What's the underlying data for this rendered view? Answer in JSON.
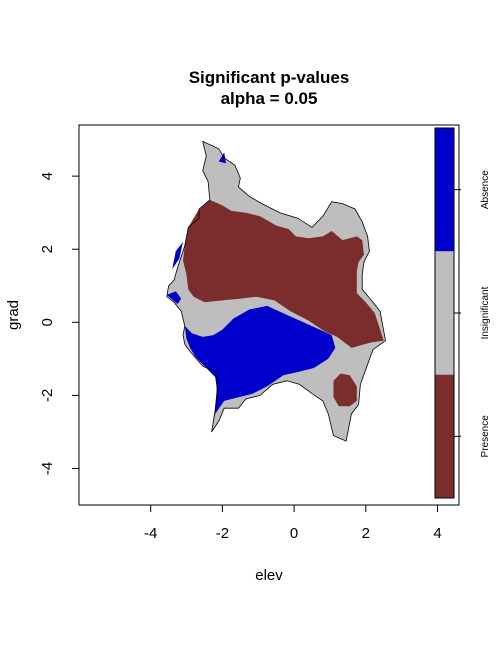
{
  "chart_data": {
    "type": "heatmap",
    "title": "Significant p-values",
    "subtitle": "alpha = 0.05",
    "xlabel": "elev",
    "ylabel": "grad",
    "xlim": [
      -6,
      4.6
    ],
    "ylim": [
      -5,
      5.4
    ],
    "xticks": [
      -4,
      -2,
      0,
      2,
      4
    ],
    "yticks": [
      -4,
      -2,
      0,
      2,
      4
    ],
    "legend": {
      "placement": "right",
      "categories": [
        {
          "label": "Absence",
          "color": "#0000cd"
        },
        {
          "label": "Insignificant",
          "color": "#bebebe"
        },
        {
          "label": "Presence",
          "color": "#7b2c2c"
        }
      ]
    },
    "regions": {
      "insignificant": {
        "color": "#bebebe",
        "outline": [
          [
            -2.55,
            4.95
          ],
          [
            -2.1,
            4.75
          ],
          [
            -1.95,
            4.5
          ],
          [
            -1.65,
            4.3
          ],
          [
            -1.5,
            3.95
          ],
          [
            -1.55,
            3.7
          ],
          [
            -1.25,
            3.45
          ],
          [
            -0.9,
            3.25
          ],
          [
            -0.4,
            3.0
          ],
          [
            0.1,
            2.85
          ],
          [
            0.5,
            2.6
          ],
          [
            0.8,
            2.9
          ],
          [
            1.05,
            3.3
          ],
          [
            1.35,
            3.25
          ],
          [
            1.7,
            3.1
          ],
          [
            1.9,
            2.75
          ],
          [
            2.05,
            2.35
          ],
          [
            2.1,
            1.95
          ],
          [
            1.95,
            1.65
          ],
          [
            1.9,
            1.3
          ],
          [
            1.9,
            0.9
          ],
          [
            2.2,
            0.55
          ],
          [
            2.4,
            0.3
          ],
          [
            2.55,
            -0.5
          ],
          [
            2.2,
            -0.75
          ],
          [
            2.05,
            -1.15
          ],
          [
            1.85,
            -1.7
          ],
          [
            1.8,
            -2.25
          ],
          [
            1.6,
            -2.5
          ],
          [
            1.5,
            -3.0
          ],
          [
            1.45,
            -3.25
          ],
          [
            1.1,
            -3.1
          ],
          [
            0.95,
            -2.5
          ],
          [
            0.8,
            -2.15
          ],
          [
            0.5,
            -1.95
          ],
          [
            0.15,
            -1.7
          ],
          [
            -0.2,
            -1.6
          ],
          [
            -0.6,
            -1.7
          ],
          [
            -0.95,
            -2.0
          ],
          [
            -1.35,
            -2.1
          ],
          [
            -1.55,
            -2.35
          ],
          [
            -1.95,
            -2.35
          ],
          [
            -2.1,
            -2.7
          ],
          [
            -2.3,
            -3.0
          ],
          [
            -2.2,
            -2.4
          ],
          [
            -2.15,
            -1.9
          ],
          [
            -2.15,
            -1.55
          ],
          [
            -2.2,
            -1.35
          ],
          [
            -2.55,
            -1.2
          ],
          [
            -2.9,
            -0.8
          ],
          [
            -3.05,
            -0.6
          ],
          [
            -3.1,
            -0.35
          ],
          [
            -3.05,
            -0.1
          ],
          [
            -3.15,
            0.3
          ],
          [
            -3.35,
            0.55
          ],
          [
            -3.55,
            0.7
          ],
          [
            -3.5,
            1.0
          ],
          [
            -3.35,
            1.15
          ],
          [
            -3.25,
            1.5
          ],
          [
            -3.05,
            2.1
          ],
          [
            -2.95,
            2.6
          ],
          [
            -2.65,
            2.85
          ],
          [
            -2.65,
            3.1
          ],
          [
            -2.35,
            3.35
          ],
          [
            -2.4,
            3.85
          ],
          [
            -2.55,
            4.15
          ],
          [
            -2.45,
            4.55
          ],
          [
            -2.55,
            4.95
          ]
        ]
      },
      "presence": {
        "color": "#7b2c2c",
        "polygons": [
          [
            [
              -2.95,
              2.6
            ],
            [
              -2.65,
              3.1
            ],
            [
              -2.35,
              3.35
            ],
            [
              -2.0,
              3.2
            ],
            [
              -1.75,
              3.05
            ],
            [
              -1.35,
              3.0
            ],
            [
              -0.95,
              2.9
            ],
            [
              -0.5,
              2.65
            ],
            [
              -0.15,
              2.55
            ],
            [
              0.05,
              2.35
            ],
            [
              0.4,
              2.3
            ],
            [
              0.8,
              2.35
            ],
            [
              1.05,
              2.5
            ],
            [
              1.35,
              2.25
            ],
            [
              1.55,
              2.3
            ],
            [
              1.75,
              2.35
            ],
            [
              1.9,
              2.25
            ],
            [
              1.95,
              1.85
            ],
            [
              1.8,
              1.65
            ],
            [
              1.75,
              1.4
            ],
            [
              1.75,
              1.05
            ],
            [
              1.75,
              0.8
            ],
            [
              2.0,
              0.55
            ],
            [
              2.25,
              0.25
            ],
            [
              2.5,
              -0.5
            ],
            [
              2.15,
              -0.55
            ],
            [
              1.6,
              -0.7
            ],
            [
              1.2,
              -0.4
            ],
            [
              0.85,
              -0.25
            ],
            [
              0.4,
              0.05
            ],
            [
              -0.1,
              0.3
            ],
            [
              -0.55,
              0.6
            ],
            [
              -1.05,
              0.7
            ],
            [
              -1.5,
              0.65
            ],
            [
              -2.0,
              0.6
            ],
            [
              -2.5,
              0.55
            ],
            [
              -2.8,
              0.7
            ],
            [
              -2.95,
              0.9
            ],
            [
              -3.0,
              1.3
            ],
            [
              -3.1,
              1.7
            ],
            [
              -3.05,
              2.1
            ],
            [
              -2.95,
              2.6
            ]
          ],
          [
            [
              1.1,
              -1.6
            ],
            [
              1.3,
              -1.4
            ],
            [
              1.55,
              -1.45
            ],
            [
              1.75,
              -1.75
            ],
            [
              1.75,
              -2.15
            ],
            [
              1.55,
              -2.3
            ],
            [
              1.25,
              -2.3
            ],
            [
              1.1,
              -2.05
            ],
            [
              1.1,
              -1.6
            ]
          ]
        ]
      },
      "absence": {
        "color": "#0000cd",
        "polygons": [
          [
            [
              -3.05,
              -0.1
            ],
            [
              -2.85,
              -0.3
            ],
            [
              -2.55,
              -0.4
            ],
            [
              -2.25,
              -0.35
            ],
            [
              -2.0,
              -0.2
            ],
            [
              -1.7,
              0.1
            ],
            [
              -1.25,
              0.35
            ],
            [
              -0.75,
              0.45
            ],
            [
              -0.3,
              0.25
            ],
            [
              0.15,
              0.05
            ],
            [
              0.6,
              -0.15
            ],
            [
              1.05,
              -0.35
            ],
            [
              1.15,
              -0.7
            ],
            [
              0.95,
              -1.0
            ],
            [
              0.55,
              -1.25
            ],
            [
              0.15,
              -1.35
            ],
            [
              -0.3,
              -1.45
            ],
            [
              -0.75,
              -1.75
            ],
            [
              -1.15,
              -1.95
            ],
            [
              -1.55,
              -2.05
            ],
            [
              -1.95,
              -2.15
            ],
            [
              -2.2,
              -2.5
            ],
            [
              -2.3,
              -3.0
            ],
            [
              -2.2,
              -2.45
            ],
            [
              -2.15,
              -1.85
            ],
            [
              -2.2,
              -1.5
            ],
            [
              -2.45,
              -1.25
            ],
            [
              -2.75,
              -0.95
            ],
            [
              -2.9,
              -0.7
            ],
            [
              -3.0,
              -0.45
            ],
            [
              -3.05,
              -0.1
            ]
          ],
          [
            [
              -3.55,
              0.75
            ],
            [
              -3.3,
              0.85
            ],
            [
              -3.15,
              0.65
            ],
            [
              -3.25,
              0.5
            ],
            [
              -3.55,
              0.75
            ]
          ],
          [
            [
              -3.4,
              1.45
            ],
            [
              -3.2,
              1.75
            ],
            [
              -3.1,
              2.2
            ],
            [
              -3.3,
              1.95
            ],
            [
              -3.4,
              1.45
            ]
          ],
          [
            [
              -2.1,
              4.4
            ],
            [
              -1.9,
              4.35
            ],
            [
              -1.95,
              4.65
            ],
            [
              -2.1,
              4.4
            ]
          ]
        ]
      }
    }
  }
}
